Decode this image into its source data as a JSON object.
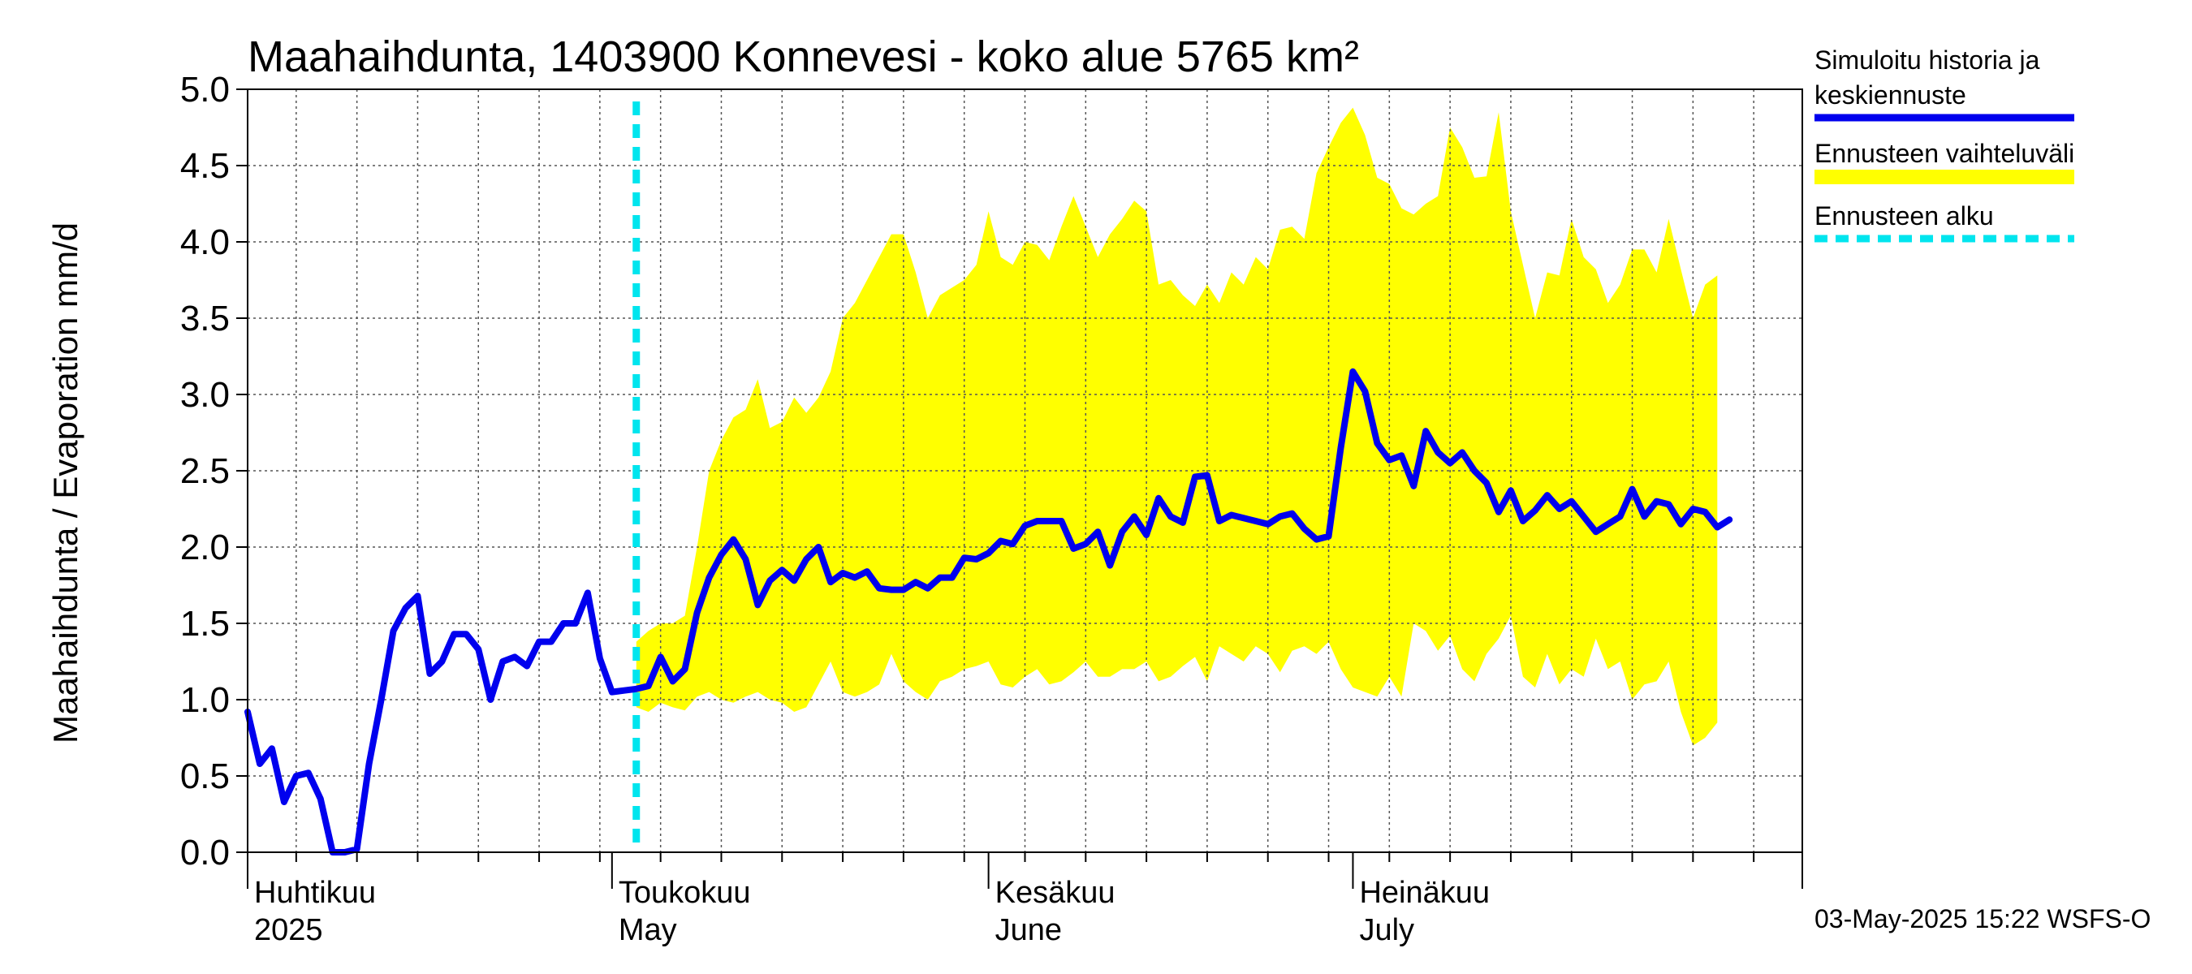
{
  "chart_data": {
    "type": "line",
    "title": "Maahaihdunta, 1403900 Konnevesi - koko alue 5765 km²",
    "ylabel": "Maahaihdunta / Evaporation   mm/d",
    "ylim": [
      0,
      5
    ],
    "y_ticks": [
      "0.0",
      "0.5",
      "1.0",
      "1.5",
      "2.0",
      "2.5",
      "3.0",
      "3.5",
      "4.0",
      "4.5",
      "5.0"
    ],
    "x_range_days": [
      0,
      128
    ],
    "month_boundaries": [
      0,
      30,
      61,
      91
    ],
    "months": [
      {
        "line1": "Huhtikuu",
        "line2": "2025",
        "start": 0
      },
      {
        "line1": "Toukokuu",
        "line2": "May",
        "start": 30
      },
      {
        "line1": "Kesäkuu",
        "line2": "June",
        "start": 61
      },
      {
        "line1": "Heinäkuu",
        "line2": "July",
        "start": 91
      }
    ],
    "forecast_start": 32,
    "grid": true,
    "series": [
      {
        "name": "Simuloitu historia ja keskiennuste",
        "color": "#0000ee",
        "x_start": 0,
        "values": [
          0.92,
          0.58,
          0.68,
          0.33,
          0.5,
          0.52,
          0.35,
          0,
          0,
          0.02,
          0.58,
          1.0,
          1.45,
          1.6,
          1.68,
          1.17,
          1.25,
          1.43,
          1.43,
          1.33,
          1.0,
          1.25,
          1.28,
          1.22,
          1.38,
          1.38,
          1.5,
          1.5,
          1.7,
          1.27,
          1.05,
          1.06,
          1.07,
          1.09,
          1.28,
          1.12,
          1.2,
          1.57,
          1.8,
          1.95,
          2.05,
          1.92,
          1.62,
          1.78,
          1.85,
          1.78,
          1.92,
          2.0,
          1.77,
          1.83,
          1.8,
          1.84,
          1.73,
          1.72,
          1.72,
          1.77,
          1.73,
          1.8,
          1.8,
          1.93,
          1.92,
          1.96,
          2.04,
          2.02,
          2.14,
          2.17,
          2.17,
          2.17,
          1.99,
          2.02,
          2.1,
          1.88,
          2.1,
          2.2,
          2.08,
          2.32,
          2.2,
          2.16,
          2.46,
          2.47,
          2.17,
          2.21,
          2.19,
          2.17,
          2.15,
          2.2,
          2.22,
          2.12,
          2.05,
          2.07,
          2.65,
          3.15,
          3.02,
          2.68,
          2.57,
          2.6,
          2.4,
          2.76,
          2.62,
          2.55,
          2.62,
          2.5,
          2.42,
          2.23,
          2.37,
          2.17,
          2.24,
          2.34,
          2.25,
          2.3,
          2.2,
          2.1,
          2.15,
          2.2,
          2.38,
          2.2,
          2.3,
          2.28,
          2.15,
          2.25,
          2.23,
          2.13,
          2.18
        ]
      },
      {
        "name": "Ennusteen vaihteluväli",
        "color": "#ffff00",
        "x_start": 32,
        "upper": [
          1.38,
          1.45,
          1.5,
          1.5,
          1.55,
          2.0,
          2.5,
          2.7,
          2.85,
          2.9,
          3.1,
          2.78,
          2.82,
          2.98,
          2.88,
          2.98,
          3.15,
          3.5,
          3.6,
          3.75,
          3.9,
          4.05,
          4.05,
          3.8,
          3.5,
          3.65,
          3.7,
          3.75,
          3.85,
          4.2,
          3.9,
          3.85,
          4.0,
          3.98,
          3.88,
          4.1,
          4.3,
          4.1,
          3.9,
          4.05,
          4.15,
          4.27,
          4.2,
          3.72,
          3.75,
          3.65,
          3.58,
          3.72,
          3.6,
          3.8,
          3.72,
          3.9,
          3.82,
          4.08,
          4.1,
          4.02,
          4.45,
          4.62,
          4.78,
          4.88,
          4.7,
          4.42,
          4.38,
          4.22,
          4.18,
          4.25,
          4.3,
          4.75,
          4.62,
          4.42,
          4.43,
          4.85,
          4.2,
          3.85,
          3.5,
          3.8,
          3.78,
          4.15,
          3.9,
          3.82,
          3.6,
          3.72,
          3.95,
          3.95,
          3.8,
          4.15,
          3.82,
          3.5,
          3.72,
          3.78
        ],
        "lower": [
          0.95,
          0.92,
          0.98,
          0.95,
          0.93,
          1.02,
          1.05,
          1.0,
          0.98,
          1.02,
          1.05,
          1.0,
          0.98,
          0.92,
          0.95,
          1.1,
          1.25,
          1.05,
          1.02,
          1.05,
          1.1,
          1.3,
          1.12,
          1.05,
          1.0,
          1.12,
          1.15,
          1.2,
          1.22,
          1.25,
          1.1,
          1.08,
          1.15,
          1.2,
          1.1,
          1.12,
          1.18,
          1.25,
          1.15,
          1.15,
          1.2,
          1.2,
          1.25,
          1.12,
          1.15,
          1.22,
          1.28,
          1.12,
          1.35,
          1.3,
          1.25,
          1.35,
          1.3,
          1.18,
          1.32,
          1.35,
          1.3,
          1.38,
          1.2,
          1.08,
          1.05,
          1.02,
          1.15,
          1.02,
          1.5,
          1.45,
          1.32,
          1.42,
          1.2,
          1.12,
          1.3,
          1.4,
          1.55,
          1.15,
          1.08,
          1.3,
          1.1,
          1.2,
          1.15,
          1.4,
          1.2,
          1.25,
          1.0,
          1.1,
          1.12,
          1.25,
          0.92,
          0.7,
          0.75,
          0.85
        ]
      }
    ],
    "forecast_line": {
      "name": "Ennusteen alku",
      "color": "#00e5ee"
    },
    "legend": {
      "placement": "right",
      "entries": [
        {
          "line1": "Simuloitu historia ja",
          "line2": "keskiennuste",
          "color": "#0000ee",
          "style": "solid"
        },
        {
          "line1": "Ennusteen vaihteluväli",
          "line2": "",
          "color": "#ffff00",
          "style": "band"
        },
        {
          "line1": "Ennusteen alku",
          "line2": "",
          "color": "#00e5ee",
          "style": "dashed"
        }
      ]
    },
    "timestamp": "03-May-2025 15:22 WSFS-O"
  }
}
